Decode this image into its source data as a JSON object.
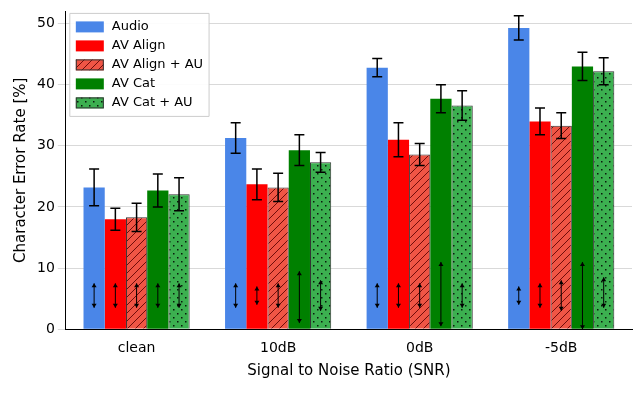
{
  "chart_data": {
    "type": "bar",
    "x_label": "Signal to Noise Ratio (SNR)",
    "y_label": "Character Error Rate [%]",
    "categories": [
      "clean",
      "10dB",
      "0dB",
      "-5dB"
    ],
    "ylim": [
      0,
      52
    ],
    "yticks": [
      0,
      10,
      20,
      30,
      40,
      50
    ],
    "grid": true,
    "legend": "upper left",
    "series": [
      {
        "name": "Audio",
        "color": "#4a86e8",
        "values": [
          23.2,
          31.3,
          42.8,
          49.3
        ],
        "errors": [
          3.0,
          2.5,
          1.5,
          2.0
        ],
        "arrows": [
          [
            3.5,
            7.5
          ],
          [
            3.5,
            7.5
          ],
          [
            3.5,
            7.5
          ],
          [
            4,
            7
          ]
        ]
      },
      {
        "name": "AV Align",
        "color": "#ff0000",
        "values": [
          18.0,
          23.7,
          31.0,
          34.0
        ],
        "errors": [
          1.8,
          2.5,
          2.8,
          2.2
        ],
        "arrows": [
          [
            3.5,
            7.5
          ],
          [
            4,
            7
          ],
          [
            3.5,
            7.5
          ],
          [
            3.5,
            7.5
          ]
        ]
      },
      {
        "name": "AV Align + AU",
        "color": "#f05545",
        "values": [
          18.3,
          23.2,
          28.6,
          33.3
        ],
        "errors": [
          2.3,
          2.3,
          1.8,
          2.1
        ],
        "arrows": [
          [
            3.5,
            7.5
          ],
          [
            3.5,
            7.5
          ],
          [
            3.5,
            7.5
          ],
          [
            3,
            8
          ]
        ]
      },
      {
        "name": "AV Cat",
        "color": "#008000",
        "values": [
          22.7,
          29.3,
          37.7,
          43.0
        ],
        "errors": [
          2.7,
          2.5,
          2.3,
          2.3
        ],
        "arrows": [
          [
            3.5,
            7.5
          ],
          [
            1,
            9.5
          ],
          [
            0.5,
            11
          ],
          [
            0,
            11
          ]
        ]
      },
      {
        "name": "AV Cat + AU",
        "color": "#3cb050",
        "values": [
          22.1,
          27.3,
          36.6,
          42.2
        ],
        "errors": [
          2.7,
          1.6,
          2.4,
          2.2
        ],
        "arrows": [
          [
            3.5,
            7.5
          ],
          [
            3,
            8
          ],
          [
            3.5,
            7.5
          ],
          [
            3.5,
            8.5
          ]
        ]
      }
    ]
  }
}
